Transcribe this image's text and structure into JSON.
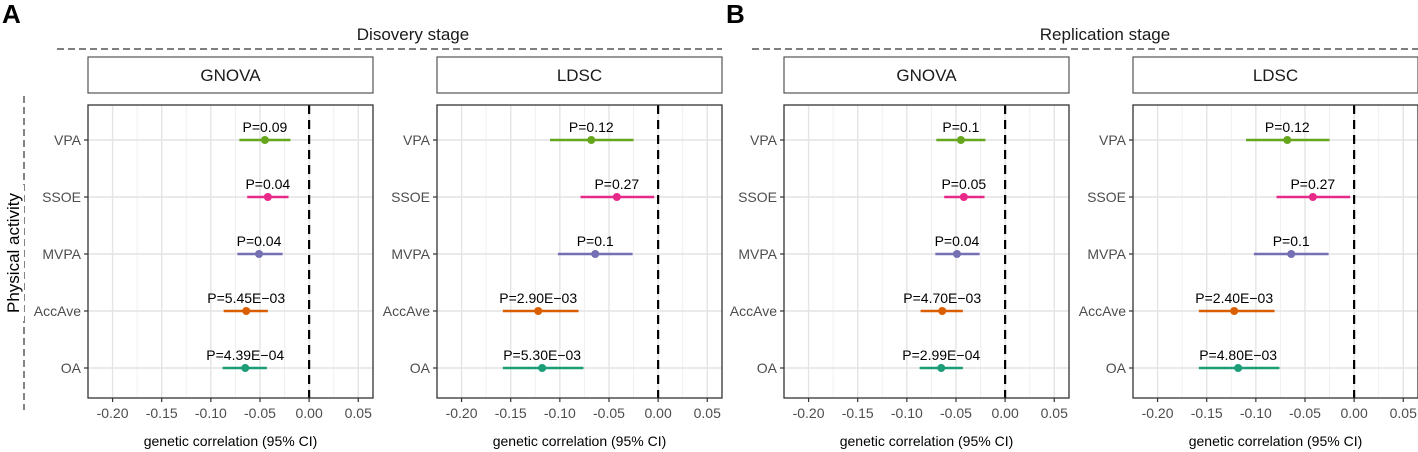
{
  "figure": {
    "panel_letters": [
      "A",
      "B"
    ],
    "stages": [
      "Disovery stage",
      "Replication stage"
    ],
    "y_axis_label": "Physical activity"
  },
  "colors": {
    "VPA": "#66a61e",
    "SSOE": "#e7298a",
    "MVPA": "#7570b3",
    "AccAve": "#d95f02",
    "OA": "#1b9e77"
  },
  "chart_data": [
    {
      "type": "forest",
      "stage": "Disovery stage",
      "method": "GNOVA",
      "xlabel": "genetic correlation (95% CI)",
      "xlim": [
        -0.225,
        0.065
      ],
      "xticks": [
        -0.2,
        -0.15,
        -0.1,
        -0.05,
        0.0,
        0.05
      ],
      "xtick_labels": [
        "-0.20",
        "-0.15",
        "-0.10",
        "-0.05",
        "0.00",
        "0.05"
      ],
      "reference_line": 0.0,
      "categories": [
        "VPA",
        "SSOE",
        "MVPA",
        "AccAve",
        "OA"
      ],
      "estimates": [
        -0.045,
        -0.042,
        -0.051,
        -0.064,
        -0.065
      ],
      "ci_low": [
        -0.071,
        -0.063,
        -0.073,
        -0.087,
        -0.088
      ],
      "ci_high": [
        -0.019,
        -0.021,
        -0.027,
        -0.042,
        -0.043
      ],
      "p_labels": [
        "P=0.09",
        "P=0.04",
        "P=0.04",
        "P=5.45E−03",
        "P=4.39E−04"
      ]
    },
    {
      "type": "forest",
      "stage": "Disovery stage",
      "method": "LDSC",
      "xlabel": "genetic correlation (95% CI)",
      "xlim": [
        -0.225,
        0.065
      ],
      "xticks": [
        -0.2,
        -0.15,
        -0.1,
        -0.05,
        0.0,
        0.05
      ],
      "xtick_labels": [
        "-0.20",
        "-0.15",
        "-0.10",
        "-0.05",
        "0.00",
        "0.05"
      ],
      "reference_line": 0.0,
      "categories": [
        "VPA",
        "SSOE",
        "MVPA",
        "AccAve",
        "OA"
      ],
      "estimates": [
        -0.068,
        -0.042,
        -0.064,
        -0.122,
        -0.118
      ],
      "ci_low": [
        -0.11,
        -0.079,
        -0.102,
        -0.158,
        -0.158
      ],
      "ci_high": [
        -0.025,
        -0.004,
        -0.026,
        -0.081,
        -0.076
      ],
      "p_labels": [
        "P=0.12",
        "P=0.27",
        "P=0.1",
        "P=2.90E−03",
        "P=5.30E−03"
      ]
    },
    {
      "type": "forest",
      "stage": "Replication stage",
      "method": "GNOVA",
      "xlabel": "genetic correlation (95% CI)",
      "xlim": [
        -0.225,
        0.065
      ],
      "xticks": [
        -0.2,
        -0.15,
        -0.1,
        -0.05,
        0.0,
        0.05
      ],
      "xtick_labels": [
        "-0.20",
        "-0.15",
        "-0.10",
        "-0.05",
        "0.00",
        "0.05"
      ],
      "reference_line": 0.0,
      "categories": [
        "VPA",
        "SSOE",
        "MVPA",
        "AccAve",
        "OA"
      ],
      "estimates": [
        -0.045,
        -0.042,
        -0.049,
        -0.064,
        -0.065
      ],
      "ci_low": [
        -0.07,
        -0.062,
        -0.071,
        -0.086,
        -0.087
      ],
      "ci_high": [
        -0.02,
        -0.021,
        -0.026,
        -0.043,
        -0.043
      ],
      "p_labels": [
        "P=0.1",
        "P=0.05",
        "P=0.04",
        "P=4.70E−03",
        "P=2.99E−04"
      ]
    },
    {
      "type": "forest",
      "stage": "Replication stage",
      "method": "LDSC",
      "xlabel": "genetic correlation (95% CI)",
      "xlim": [
        -0.225,
        0.065
      ],
      "xticks": [
        -0.2,
        -0.15,
        -0.1,
        -0.05,
        0.0,
        0.05
      ],
      "xtick_labels": [
        "-0.20",
        "-0.15",
        "-0.10",
        "-0.05",
        "0.00",
        "0.05"
      ],
      "reference_line": 0.0,
      "categories": [
        "VPA",
        "SSOE",
        "MVPA",
        "AccAve",
        "OA"
      ],
      "estimates": [
        -0.068,
        -0.042,
        -0.064,
        -0.122,
        -0.118
      ],
      "ci_low": [
        -0.11,
        -0.079,
        -0.102,
        -0.158,
        -0.158
      ],
      "ci_high": [
        -0.025,
        -0.004,
        -0.026,
        -0.081,
        -0.076
      ],
      "p_labels": [
        "P=0.12",
        "P=0.27",
        "P=0.1",
        "P=2.40E−03",
        "P=4.80E−03"
      ]
    }
  ]
}
